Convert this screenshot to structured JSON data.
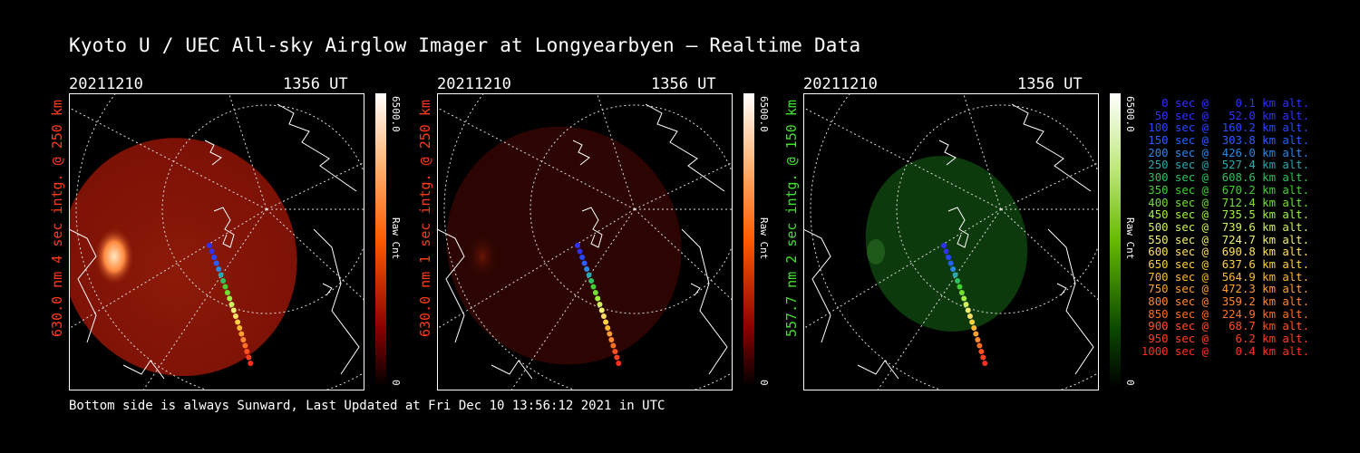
{
  "title": "Kyoto U / UEC All-sky Airglow Imager at Longyearbyen — Realtime Data",
  "footer": "Bottom side is always Sunward, Last Updated at Fri Dec 10 13:56:12 2021 in UTC",
  "panels": [
    {
      "date": "20211210",
      "time": "1356 UT",
      "side_label": "630.0 nm 4 sec intg. @ 250 km",
      "side_color": "#ff3a1a",
      "colorbar_max": "6500.0",
      "colorbar_unit": "Raw Cnt",
      "colorbar_min": "0",
      "glow": "#8a1208",
      "bar_top": "#ffffff",
      "bar_mid": "#ff5a00",
      "bar_low": "#6a0000"
    },
    {
      "date": "20211210",
      "time": "1356 UT",
      "side_label": "630.0 nm 1 sec intg. @ 250 km",
      "side_color": "#ff3a1a",
      "colorbar_max": "6500.0",
      "colorbar_unit": "Raw Cnt",
      "colorbar_min": "0",
      "glow": "#2c0502",
      "bar_top": "#ffffff",
      "bar_mid": "#ff5a00",
      "bar_low": "#6a0000"
    },
    {
      "date": "20211210",
      "time": "1356 UT",
      "side_label": "557.7 nm 2 sec intg. @ 150 km",
      "side_color": "#44e030",
      "colorbar_max": "6500.0",
      "colorbar_unit": "Raw Cnt",
      "colorbar_min": "0",
      "glow": "#0d3a0c",
      "bar_top": "#ffffff",
      "bar_mid": "#66bb00",
      "bar_low": "#0a3a00"
    }
  ],
  "legend": [
    {
      "text": "   0 sec @    0.1 km alt.",
      "color": "#3030ff"
    },
    {
      "text": "  50 sec @   52.0 km alt.",
      "color": "#3030ff"
    },
    {
      "text": " 100 sec @  160.2 km alt.",
      "color": "#2848ff"
    },
    {
      "text": " 150 sec @  303.8 km alt.",
      "color": "#2860ff"
    },
    {
      "text": " 200 sec @  426.0 km alt.",
      "color": "#2888e8"
    },
    {
      "text": " 250 sec @  527.4 km alt.",
      "color": "#28a8b0"
    },
    {
      "text": " 300 sec @  608.6 km alt.",
      "color": "#30c060"
    },
    {
      "text": " 350 sec @  670.2 km alt.",
      "color": "#40d030"
    },
    {
      "text": " 400 sec @  712.4 km alt.",
      "color": "#70e030"
    },
    {
      "text": " 450 sec @  735.5 km alt.",
      "color": "#a0f040"
    },
    {
      "text": " 500 sec @  739.6 km alt.",
      "color": "#d0f060"
    },
    {
      "text": " 550 sec @  724.7 km alt.",
      "color": "#f0f070"
    },
    {
      "text": " 600 sec @  690.8 km alt.",
      "color": "#ffe060"
    },
    {
      "text": " 650 sec @  637.6 km alt.",
      "color": "#ffd040"
    },
    {
      "text": " 700 sec @  564.9 km alt.",
      "color": "#ffb830"
    },
    {
      "text": " 750 sec @  472.3 km alt.",
      "color": "#ffa030"
    },
    {
      "text": " 800 sec @  359.2 km alt.",
      "color": "#ff8830"
    },
    {
      "text": " 850 sec @  224.9 km alt.",
      "color": "#ff7020"
    },
    {
      "text": " 900 sec @   68.7 km alt.",
      "color": "#ff5020"
    },
    {
      "text": " 950 sec @    6.2 km alt.",
      "color": "#ff4020"
    },
    {
      "text": "1000 sec @    0.4 km alt.",
      "color": "#ff3020"
    }
  ]
}
